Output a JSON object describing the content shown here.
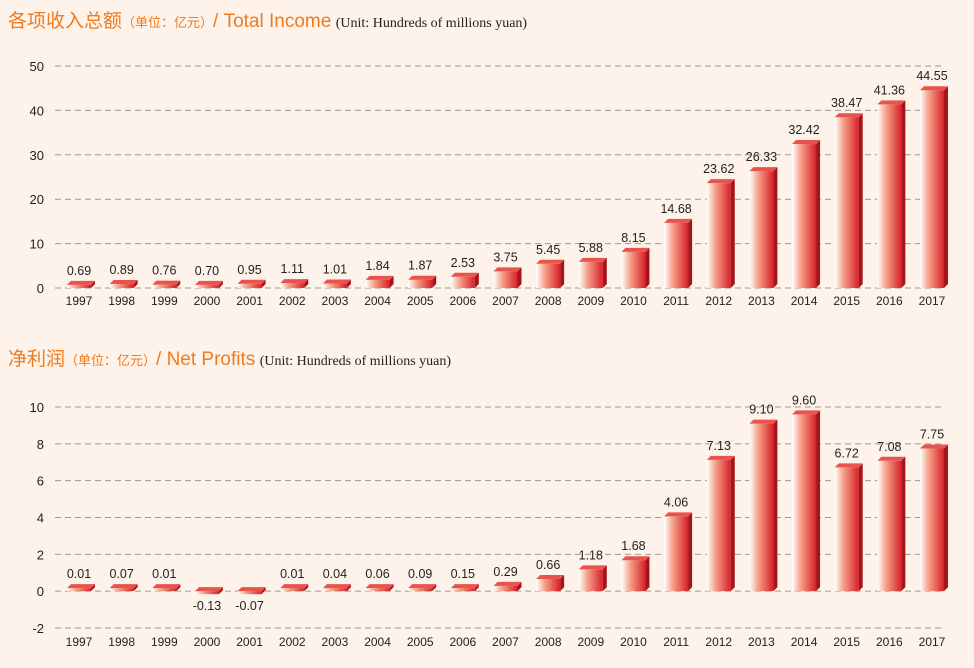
{
  "charts": {
    "income": {
      "title_cn": "各项收入总额",
      "unit_cn": "（单位：亿元）",
      "title_en": "/ Total Income",
      "unit_en": "(Unit: Hundreds of millions yuan)"
    },
    "profit": {
      "title_cn": "净利润",
      "unit_cn": "（单位：亿元）",
      "title_en": "/ Net Profits",
      "unit_en": "(Unit: Hundreds of millions yuan)"
    }
  },
  "colors": {
    "bar_light": "#ffffff",
    "bar_mid": "#f4a48a",
    "bar_dark": "#d8202a",
    "bar_side": "#a5141b",
    "bar_top": "#e8544c",
    "title": "#f07a1e",
    "grid": "#9a9a9a"
  },
  "chart_data": [
    {
      "type": "bar",
      "title": "各项收入总额 / Total Income",
      "ylabel": "Unit: Hundreds of millions yuan",
      "categories": [
        "1997",
        "1998",
        "1999",
        "2000",
        "2001",
        "2002",
        "2003",
        "2004",
        "2005",
        "2006",
        "2007",
        "2008",
        "2009",
        "2010",
        "2011",
        "2012",
        "2013",
        "2014",
        "2015",
        "2016",
        "2017"
      ],
      "values": [
        0.69,
        0.89,
        0.76,
        0.7,
        0.95,
        1.11,
        1.01,
        1.84,
        1.87,
        2.53,
        3.75,
        5.45,
        5.88,
        8.15,
        14.68,
        23.62,
        26.33,
        32.42,
        38.47,
        41.36,
        44.55
      ],
      "value_labels": [
        "0.69",
        "0.89",
        "0.76",
        "0.70",
        "0.95",
        "1.11",
        "1.01",
        "1.84",
        "1.87",
        "2.53",
        "3.75",
        "5.45",
        "5.88",
        "8.15",
        "14.68",
        "23.62",
        "26.33",
        "32.42",
        "38.47",
        "41.36",
        "44.55"
      ],
      "ylim": [
        0,
        50
      ],
      "yticks": [
        0,
        10,
        20,
        30,
        40,
        50
      ],
      "ytick_labels": [
        "0",
        "10",
        "20",
        "30",
        "40",
        "50"
      ],
      "grid": true
    },
    {
      "type": "bar",
      "title": "净利润 / Net Profits",
      "ylabel": "Unit: Hundreds of millions yuan",
      "categories": [
        "1997",
        "1998",
        "1999",
        "2000",
        "2001",
        "2002",
        "2003",
        "2004",
        "2005",
        "2006",
        "2007",
        "2008",
        "2009",
        "2010",
        "2011",
        "2012",
        "2013",
        "2014",
        "2015",
        "2016",
        "2017"
      ],
      "values": [
        0.01,
        0.07,
        0.01,
        -0.13,
        -0.07,
        0.01,
        0.04,
        0.06,
        0.09,
        0.15,
        0.29,
        0.66,
        1.18,
        1.68,
        4.06,
        7.13,
        9.1,
        9.6,
        6.72,
        7.08,
        7.75
      ],
      "value_labels": [
        "0.01",
        "0.07",
        "0.01",
        "-0.13",
        "-0.07",
        "0.01",
        "0.04",
        "0.06",
        "0.09",
        "0.15",
        "0.29",
        "0.66",
        "1.18",
        "1.68",
        "4.06",
        "7.13",
        "9.10",
        "9.60",
        "6.72",
        "7.08",
        "7.75"
      ],
      "ylim": [
        -2,
        10
      ],
      "yticks": [
        -2,
        0,
        2,
        4,
        6,
        8,
        10
      ],
      "ytick_labels": [
        "-2",
        "0",
        "2",
        "4",
        "6",
        "8",
        "10"
      ],
      "grid": true
    }
  ]
}
